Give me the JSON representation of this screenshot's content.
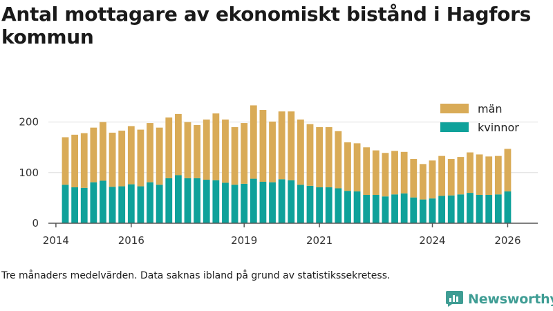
{
  "title": "Antal mottagare av ekonomiskt bistånd i Hagfors kommun",
  "footnote": "Tre månaders medelvärden. Data saknas ibland på grund av statistikssekretess.",
  "brand": {
    "name": "Newsworthy",
    "color": "#3f9d94"
  },
  "colors": {
    "men": "#d9ab57",
    "women": "#0fa19a",
    "axis": "#555555",
    "grid": "#dddddd"
  },
  "chart_data": {
    "type": "bar",
    "stacked": true,
    "title": "Antal mottagare av ekonomiskt bistånd i Hagfors kommun",
    "xlabel": "",
    "ylabel": "",
    "ylim": [
      0,
      250
    ],
    "xlim": [
      2013.8,
      2026.8
    ],
    "yticks": [
      0,
      100,
      200
    ],
    "xticks": [
      "2014",
      "2016",
      "2019",
      "2021",
      "2024",
      "2026"
    ],
    "legend_position": "top-right",
    "start": 2014.25,
    "step": 0.25,
    "series": [
      {
        "name": "kvinnor",
        "values": [
          76,
          71,
          70,
          81,
          84,
          72,
          73,
          77,
          73,
          81,
          76,
          89,
          95,
          89,
          89,
          86,
          85,
          80,
          76,
          78,
          88,
          82,
          81,
          87,
          85,
          76,
          74,
          71,
          71,
          69,
          64,
          63,
          56,
          56,
          53,
          57,
          59,
          51,
          47,
          49,
          54,
          55,
          57,
          60,
          56,
          56,
          57,
          63
        ]
      },
      {
        "name": "män",
        "values": [
          94,
          104,
          108,
          108,
          116,
          107,
          110,
          115,
          112,
          117,
          113,
          120,
          121,
          111,
          105,
          119,
          132,
          125,
          114,
          120,
          145,
          142,
          120,
          134,
          136,
          129,
          122,
          119,
          119,
          113,
          96,
          95,
          94,
          88,
          86,
          86,
          82,
          76,
          70,
          75,
          79,
          72,
          74,
          80,
          80,
          76,
          76,
          84
        ]
      }
    ]
  }
}
